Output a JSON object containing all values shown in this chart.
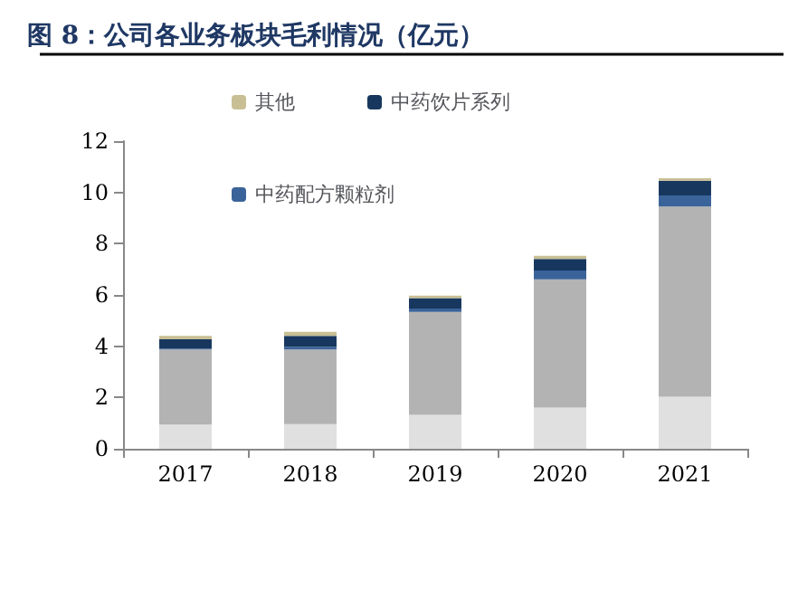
{
  "chart_data": {
    "type": "bar",
    "title": "图 8：公司各业务板块毛利情况（亿元）",
    "categories": [
      "2017",
      "2018",
      "2019",
      "2020",
      "2021"
    ],
    "stacked": true,
    "ylim": [
      0,
      12
    ],
    "yticks": [
      0,
      2,
      4,
      6,
      8,
      10,
      12
    ],
    "grid": false,
    "legend": "top",
    "series": [
      {
        "color": "#e0e0e0",
        "values": [
          0.94,
          0.96,
          1.32,
          1.61,
          2.03
        ]
      },
      {
        "color": "#b3b3b3",
        "values": [
          2.93,
          2.91,
          4.02,
          5.0,
          7.42
        ]
      },
      {
        "name": "中药配方颗粒剂",
        "color": "#3a6399",
        "values": [
          0.04,
          0.11,
          0.13,
          0.34,
          0.43
        ]
      },
      {
        "name": "中药饮片系列",
        "color": "#17375e",
        "values": [
          0.36,
          0.42,
          0.41,
          0.45,
          0.58
        ]
      },
      {
        "name": "其他",
        "color": "#c9bf95",
        "values": [
          0.13,
          0.16,
          0.09,
          0.13,
          0.09
        ]
      }
    ]
  }
}
